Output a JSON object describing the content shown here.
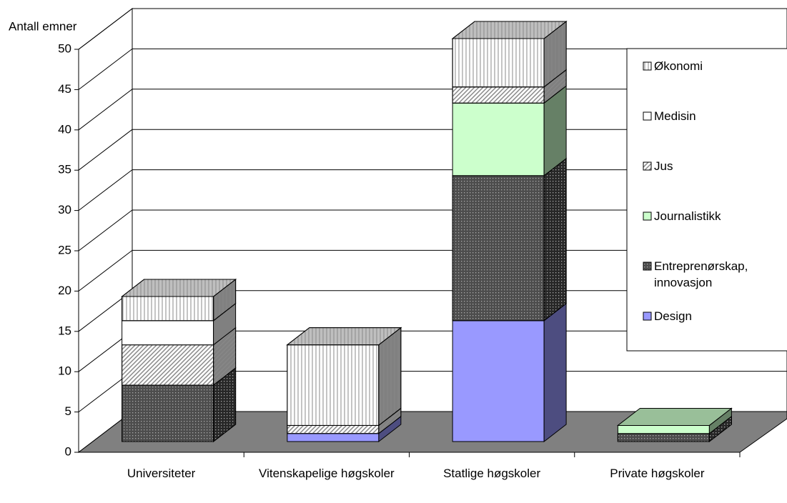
{
  "chart_data": {
    "type": "bar3d_stacked",
    "y_axis_label": "Antall emner",
    "categories": [
      "Universiteter",
      "Vitenskapelige høgskoler",
      "Statlige høgskoler",
      "Private høgskoler"
    ],
    "series": [
      {
        "name": "Design",
        "color": "#9999ff",
        "pattern": "none",
        "values": [
          0,
          1,
          15,
          0
        ]
      },
      {
        "name": "Entreprenørskap, innovasjon",
        "color": "#4d4d4d",
        "pattern": "dots",
        "values": [
          7,
          0,
          18,
          1
        ]
      },
      {
        "name": "Journalistikk",
        "color": "#ccffcc",
        "pattern": "none",
        "values": [
          0,
          0,
          9,
          1
        ]
      },
      {
        "name": "Jus",
        "color": "#ffffff",
        "pattern": "diagonal",
        "values": [
          5,
          1,
          2,
          0
        ]
      },
      {
        "name": "Medisin",
        "color": "#ffffff",
        "pattern": "none",
        "values": [
          3,
          0,
          0,
          0
        ]
      },
      {
        "name": "Økonomi",
        "color": "#ffffff",
        "pattern": "vertical",
        "values": [
          3,
          10,
          6,
          0
        ]
      }
    ],
    "ylim": [
      0,
      50
    ],
    "yticks": [
      0,
      5,
      10,
      15,
      20,
      25,
      30,
      35,
      40,
      45,
      50
    ],
    "grid": true,
    "legend": "right"
  }
}
